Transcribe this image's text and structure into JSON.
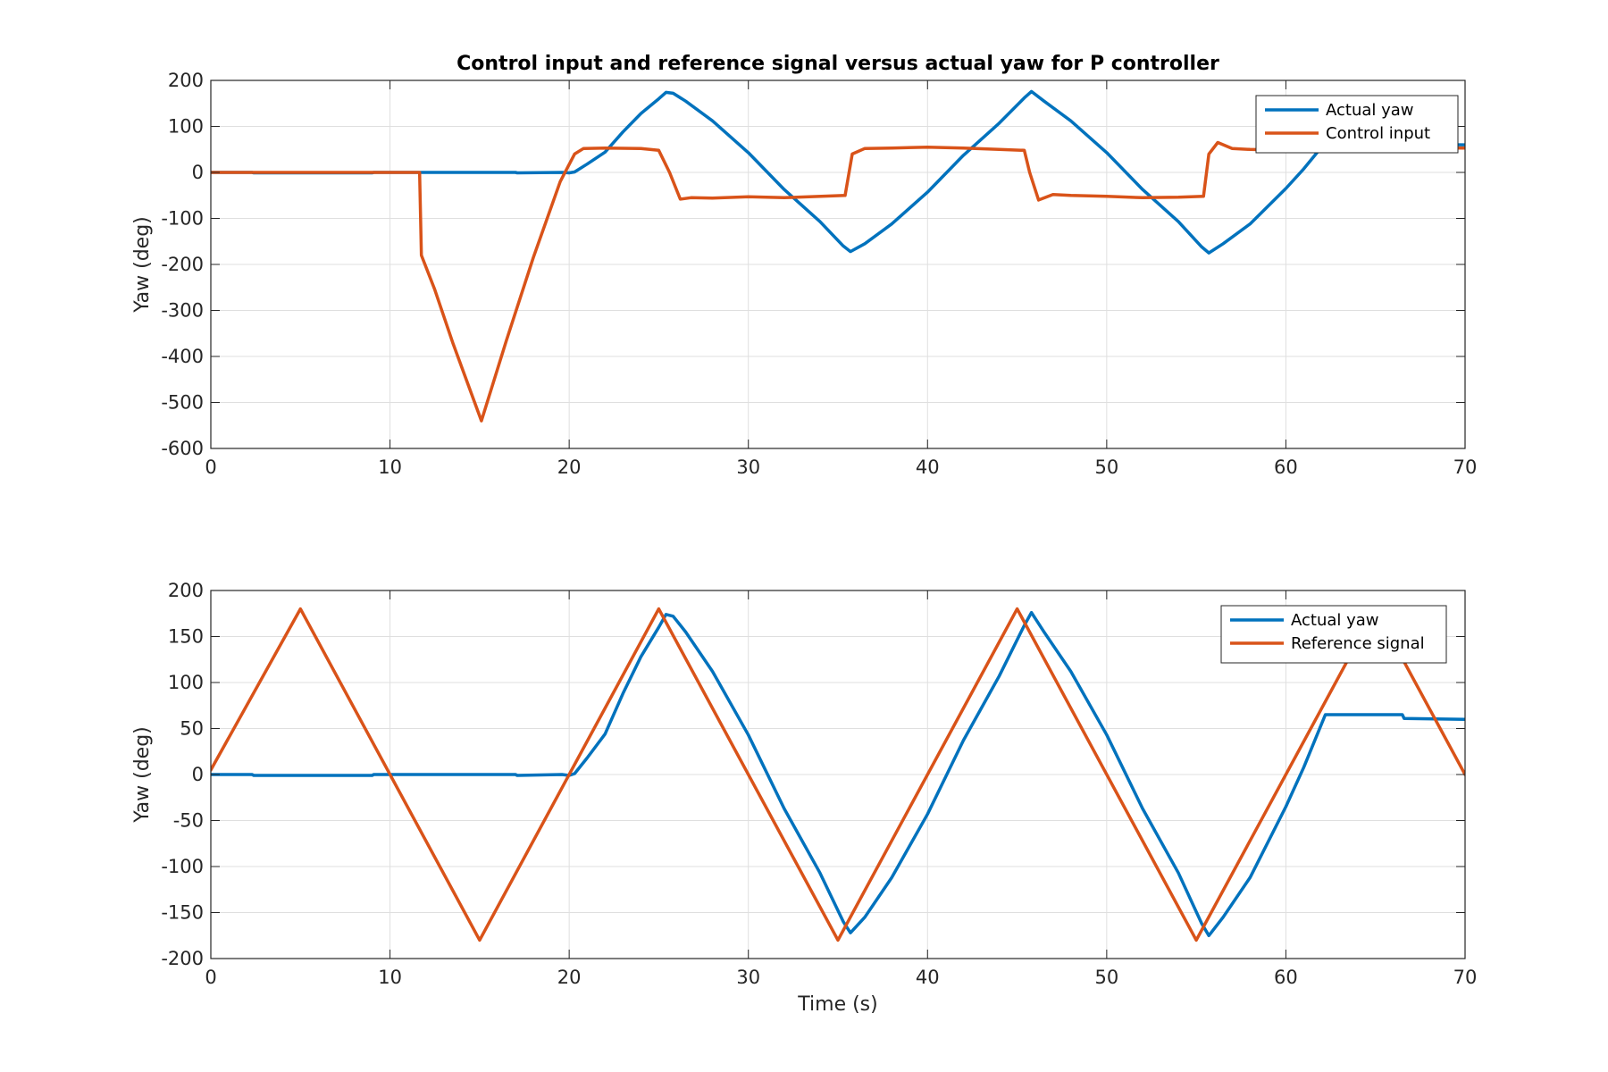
{
  "chart_data": [
    {
      "type": "line",
      "title": "Control input and reference signal versus actual yaw for P controller",
      "xlabel": "",
      "ylabel": "Yaw (deg)",
      "xlim": [
        0,
        70
      ],
      "ylim": [
        -600,
        200
      ],
      "xticks": [
        0,
        10,
        20,
        30,
        40,
        50,
        60,
        70
      ],
      "yticks": [
        200,
        100,
        0,
        -100,
        -200,
        -300,
        -400,
        -500,
        -600
      ],
      "grid": true,
      "legend_position": "top-right",
      "series": [
        {
          "name": "Actual yaw",
          "color": "#0072BD",
          "x": [
            0,
            2.3,
            2.4,
            9,
            9.1,
            17,
            17.1,
            19.6,
            20,
            20.3,
            21,
            22,
            23,
            24,
            25,
            25.4,
            25.8,
            26.5,
            28,
            30,
            32,
            34,
            35.3,
            35.7,
            36.5,
            38,
            40,
            42,
            44,
            45.4,
            45.8,
            46.5,
            48,
            50,
            52,
            54,
            55.3,
            55.7,
            56.5,
            58,
            60,
            61,
            62.2,
            66.5,
            66.6,
            70
          ],
          "y": [
            0,
            0,
            -1,
            -1,
            0,
            0,
            -1,
            0,
            -1,
            1,
            18,
            44,
            88,
            128,
            160,
            174,
            172,
            155,
            112,
            43,
            -37,
            -107,
            -160,
            -172,
            -155,
            -112,
            -43,
            37,
            107,
            162,
            176,
            155,
            112,
            43,
            -37,
            -107,
            -162,
            -175,
            -155,
            -112,
            -35,
            8,
            65,
            65,
            61,
            60
          ]
        },
        {
          "name": "Control input",
          "color": "#D95319",
          "x": [
            0,
            11.65,
            11.75,
            12.5,
            13.5,
            15.1,
            16.5,
            18,
            19.5,
            20.3,
            20.8,
            22,
            24,
            25,
            25.6,
            26.2,
            26.8,
            28,
            30,
            32,
            35.4,
            35.8,
            36.5,
            38,
            40,
            42,
            44,
            45.4,
            45.7,
            46.2,
            47,
            48,
            50,
            52,
            54,
            55.4,
            55.7,
            56.2,
            57,
            58,
            60,
            61,
            63,
            66,
            70
          ],
          "y": [
            0,
            0,
            -180,
            -255,
            -370,
            -540,
            -365,
            -185,
            -20,
            40,
            52,
            53,
            52,
            48,
            0,
            -58,
            -55,
            -56,
            -53,
            -55,
            -50,
            40,
            52,
            53,
            55,
            53,
            50,
            48,
            0,
            -60,
            -48,
            -50,
            -52,
            -55,
            -54,
            -52,
            40,
            65,
            52,
            50,
            48,
            50,
            52,
            54,
            53
          ]
        }
      ]
    },
    {
      "type": "line",
      "title": "",
      "xlabel": "Time (s)",
      "ylabel": "Yaw (deg)",
      "xlim": [
        0,
        70
      ],
      "ylim": [
        -200,
        200
      ],
      "xticks": [
        0,
        10,
        20,
        30,
        40,
        50,
        60,
        70
      ],
      "yticks": [
        200,
        150,
        100,
        50,
        0,
        -50,
        -100,
        -150,
        -200
      ],
      "grid": true,
      "legend_position": "top-right",
      "series": [
        {
          "name": "Actual yaw",
          "color": "#0072BD",
          "x": [
            0,
            2.3,
            2.4,
            9,
            9.1,
            17,
            17.1,
            19.6,
            20,
            20.3,
            21,
            22,
            23,
            24,
            25,
            25.4,
            25.8,
            26.5,
            28,
            30,
            32,
            34,
            35.3,
            35.7,
            36.5,
            38,
            40,
            42,
            44,
            45.4,
            45.8,
            46.5,
            48,
            50,
            52,
            54,
            55.3,
            55.7,
            56.5,
            58,
            60,
            61,
            62.2,
            66.5,
            66.6,
            70
          ],
          "y": [
            0,
            0,
            -1,
            -1,
            0,
            0,
            -1,
            0,
            -1,
            1,
            18,
            44,
            88,
            128,
            160,
            174,
            172,
            155,
            112,
            43,
            -37,
            -107,
            -160,
            -172,
            -155,
            -112,
            -43,
            37,
            107,
            162,
            176,
            155,
            112,
            43,
            -37,
            -107,
            -162,
            -175,
            -155,
            -112,
            -35,
            8,
            65,
            65,
            61,
            60
          ]
        },
        {
          "name": "Reference signal",
          "color": "#D95319",
          "x": [
            0,
            5,
            15,
            25,
            35,
            45,
            55,
            65,
            70
          ],
          "y": [
            5,
            180,
            -180,
            180,
            -180,
            180,
            -180,
            180,
            0
          ]
        }
      ]
    }
  ]
}
